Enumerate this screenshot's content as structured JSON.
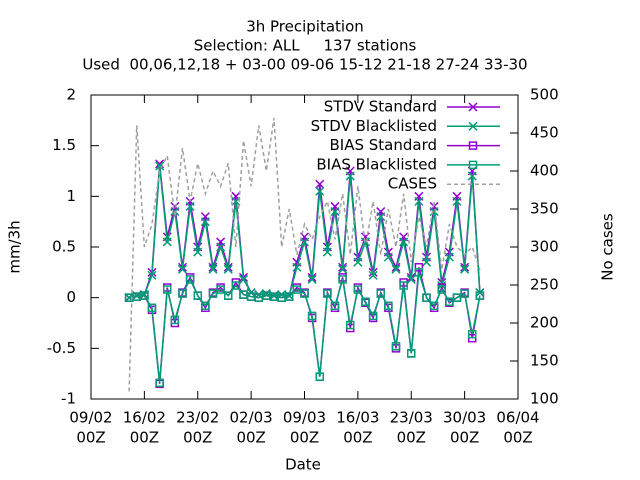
{
  "chart_data": {
    "type": "line",
    "title": [
      "3h Precipitation",
      "Selection: ALL     137 stations",
      "Used  00,06,12,18 + 03-00 09-06 15-12 21-18 27-24 33-30"
    ],
    "xlabel": "Date",
    "ylabel": "mm/3h",
    "y2label": "No cases",
    "xlim": [
      0,
      56
    ],
    "ylim": [
      -1,
      2
    ],
    "y2lim": [
      100,
      500
    ],
    "xticks": [
      {
        "value": 0,
        "label": [
          "09/02",
          "00Z"
        ]
      },
      {
        "value": 7,
        "label": [
          "16/02",
          "00Z"
        ]
      },
      {
        "value": 14,
        "label": [
          "23/02",
          "00Z"
        ]
      },
      {
        "value": 21,
        "label": [
          "02/03",
          "00Z"
        ]
      },
      {
        "value": 28,
        "label": [
          "09/03",
          "00Z"
        ]
      },
      {
        "value": 35,
        "label": [
          "16/03",
          "00Z"
        ]
      },
      {
        "value": 42,
        "label": [
          "23/03",
          "00Z"
        ]
      },
      {
        "value": 49,
        "label": [
          "30/03",
          "00Z"
        ]
      },
      {
        "value": 56,
        "label": [
          "06/04",
          "00Z"
        ]
      }
    ],
    "yticks": [
      -1,
      -0.5,
      0,
      0.5,
      1,
      1.5,
      2
    ],
    "y2ticks": [
      100,
      150,
      200,
      250,
      300,
      350,
      400,
      450,
      500
    ],
    "legend": "top-right",
    "x": [
      5,
      6,
      7,
      8,
      9,
      10,
      11,
      12,
      13,
      14,
      15,
      16,
      17,
      18,
      19,
      20,
      21,
      22,
      23,
      24,
      25,
      26,
      27,
      28,
      29,
      30,
      31,
      32,
      33,
      34,
      35,
      36,
      37,
      38,
      39,
      40,
      41,
      42,
      43,
      44,
      45,
      46,
      47,
      48,
      49,
      50,
      51
    ],
    "series": [
      {
        "name": "STDV Standard",
        "color": "#9400d3",
        "marker": "x",
        "values": [
          0,
          0.02,
          0.03,
          0.25,
          1.32,
          0.6,
          0.9,
          0.3,
          0.95,
          0.5,
          0.8,
          0.3,
          0.55,
          0.3,
          1.0,
          0.2,
          0.05,
          0.03,
          0.04,
          0.02,
          0.03,
          0.02,
          0.35,
          0.6,
          0.2,
          1.12,
          0.5,
          0.9,
          0.3,
          1.25,
          0.4,
          0.6,
          0.25,
          0.85,
          0.45,
          0.3,
          0.6,
          0.2,
          1.0,
          0.4,
          0.9,
          0.15,
          0.45,
          1.0,
          0.3,
          1.25,
          0.05
        ]
      },
      {
        "name": "STDV Blacklisted",
        "color": "#009e73",
        "marker": "x",
        "values": [
          0,
          0.02,
          0.03,
          0.22,
          1.3,
          0.55,
          0.85,
          0.28,
          0.9,
          0.45,
          0.75,
          0.28,
          0.5,
          0.28,
          0.95,
          0.18,
          0.05,
          0.03,
          0.04,
          0.02,
          0.03,
          0.02,
          0.3,
          0.55,
          0.18,
          1.05,
          0.45,
          0.85,
          0.28,
          1.2,
          0.35,
          0.55,
          0.22,
          0.8,
          0.4,
          0.28,
          0.55,
          0.18,
          0.95,
          0.35,
          0.85,
          0.12,
          0.4,
          0.95,
          0.28,
          1.2,
          0.05
        ]
      },
      {
        "name": "BIAS Standard",
        "color": "#9400d3",
        "marker": "square",
        "values": [
          0,
          0.01,
          0.02,
          -0.12,
          -0.85,
          0.1,
          -0.25,
          0.05,
          0.2,
          0.02,
          -0.1,
          0.05,
          0.1,
          0.02,
          0.15,
          0.03,
          0.01,
          0,
          0.02,
          0.01,
          0,
          0.01,
          0.1,
          0.05,
          -0.2,
          -0.78,
          0.05,
          -0.1,
          0.2,
          -0.3,
          0.1,
          -0.05,
          -0.2,
          0.05,
          -0.1,
          -0.5,
          0.15,
          -0.55,
          0.3,
          0,
          -0.1,
          0.1,
          -0.05,
          0,
          0.05,
          -0.4,
          0.02
        ]
      },
      {
        "name": "BIAS Blacklisted",
        "color": "#009e73",
        "marker": "square",
        "values": [
          0,
          0.01,
          0.02,
          -0.1,
          -0.84,
          0.08,
          -0.22,
          0.04,
          0.18,
          0.02,
          -0.08,
          0.04,
          0.08,
          0.02,
          0.12,
          0.03,
          0.01,
          0,
          0.02,
          0.01,
          0,
          0.01,
          0.08,
          0.04,
          -0.18,
          -0.78,
          0.04,
          -0.08,
          0.18,
          -0.27,
          0.08,
          -0.04,
          -0.18,
          0.04,
          -0.08,
          -0.48,
          0.12,
          -0.55,
          0.25,
          0,
          -0.08,
          0.08,
          -0.04,
          0,
          0.04,
          -0.36,
          0.02
        ]
      },
      {
        "name": "CASES",
        "color": "#a0a0a0",
        "marker": "none",
        "dash": true,
        "axis": "y2",
        "values": [
          110,
          460,
          300,
          330,
          400,
          420,
          340,
          430,
          360,
          410,
          370,
          400,
          380,
          410,
          300,
          440,
          380,
          460,
          400,
          470,
          300,
          350,
          290,
          330,
          310,
          340,
          360,
          310,
          370,
          290,
          380,
          300,
          360,
          290,
          350,
          300,
          370,
          280,
          340,
          300,
          360,
          270,
          330,
          300,
          290,
          300,
          270
        ]
      }
    ]
  }
}
